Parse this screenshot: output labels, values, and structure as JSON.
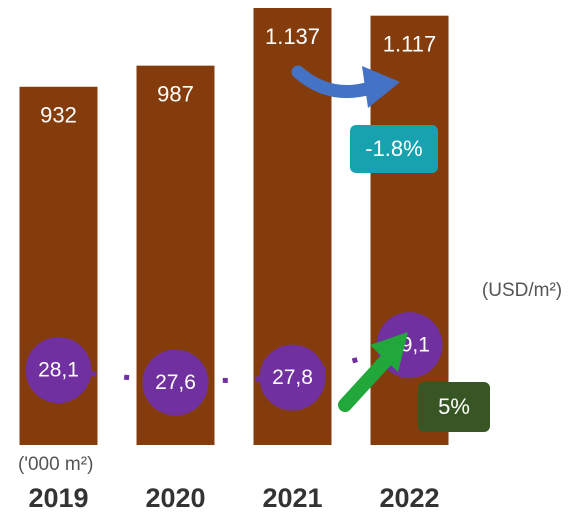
{
  "chart_data": {
    "type": "bar",
    "categories": [
      "2019",
      "2020",
      "2021",
      "2022"
    ],
    "series": [
      {
        "color": "#843c0c",
        "values": [
          932,
          987,
          1137,
          1117
        ],
        "value_labels": [
          "932",
          "987",
          "1.137",
          "1.117"
        ]
      },
      {
        "color": "#7030a0",
        "values": [
          28.1,
          27.6,
          27.8,
          29.1
        ],
        "value_labels": [
          "28,1",
          "27,6",
          "27,8",
          "29,1"
        ],
        "axis": "y2"
      }
    ],
    "ylim": [
      0,
      1150
    ],
    "y2lim": [
      25.1,
      42.8
    ],
    "annotations": [
      "-1.8%",
      "5%",
      "(USD/m²)",
      "('000 m²)"
    ]
  }
}
